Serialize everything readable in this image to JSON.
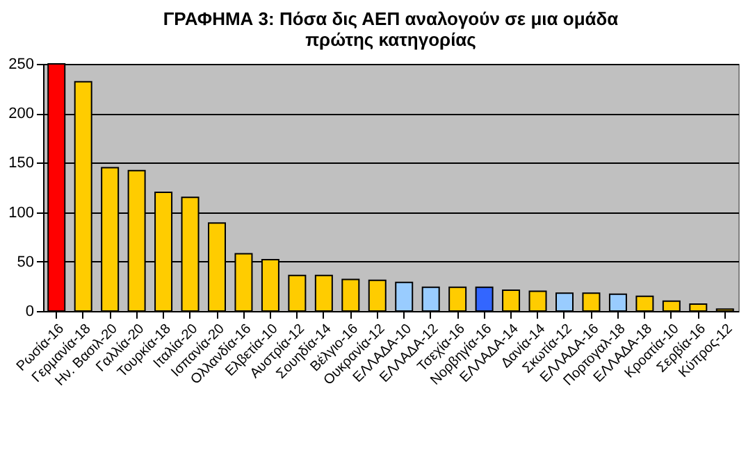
{
  "chart_data": {
    "type": "bar",
    "title": "ΓΡΑΦΗΜΑ 3:  Πόσα δις ΑΕΠ αναλογούν σε μια ομάδα\nπρώτης κατηγορίας",
    "categories": [
      "Ρωσία-16",
      "Γερμανία-18",
      "Ην. Βασιλ-20",
      "Γαλλία-20",
      "Τουρκία-18",
      "Ιταλία-20",
      "Ισπανία-20",
      "Ολλανδία-16",
      "Ελβετία-10",
      "Αυστρία-12",
      "Σουηδία-14",
      "Βέλγιο-16",
      "Ουκρανία-12",
      "ΕΛΛΑΔΑ-10",
      "ΕΛΛΑΔΑ-12",
      "Τσεχία-16",
      "Νορβηγία-16",
      "ΕΛΛΑΔΑ-14",
      "Δανία-14",
      "Σκωτία-12",
      "ΕΛΛΑΔΑ-16",
      "Πορτογαλ-18",
      "ΕΛΛΑΔΑ-18",
      "Κροατία-10",
      "Σερβία-16",
      "Κύπρος-12"
    ],
    "values": [
      250,
      232,
      145,
      142,
      120,
      115,
      89,
      58,
      52,
      36,
      36,
      32,
      31,
      29,
      24,
      24,
      24,
      21,
      20,
      18,
      18,
      17,
      15,
      10,
      7,
      2
    ],
    "colors": [
      "#ff0000",
      "#ffcc00",
      "#ffcc00",
      "#ffcc00",
      "#ffcc00",
      "#ffcc00",
      "#ffcc00",
      "#ffcc00",
      "#ffcc00",
      "#ffcc00",
      "#ffcc00",
      "#ffcc00",
      "#ffcc00",
      "#99ccff",
      "#99ccff",
      "#ffcc00",
      "#3366ff",
      "#ffcc00",
      "#ffcc00",
      "#99ccff",
      "#ffcc00",
      "#99ccff",
      "#ffcc00",
      "#ffcc00",
      "#ffcc00",
      "#ffcc00"
    ],
    "ylim": [
      0,
      250
    ],
    "yticks": [
      0,
      50,
      100,
      150,
      200,
      250
    ],
    "grid": "y"
  }
}
